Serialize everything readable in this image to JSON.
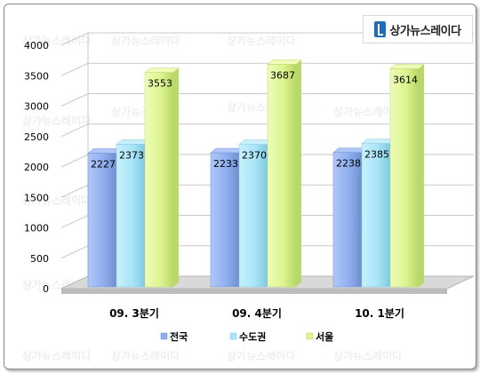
{
  "brand": {
    "logo_text": "상가뉴스레이다",
    "watermark_text": "상가뉴스레이다"
  },
  "colors": {
    "series": [
      "#8faef0",
      "#a8e6f8",
      "#ddf58f"
    ],
    "series_side": [
      "#6f8fd0",
      "#80c8e0",
      "#b8d86a"
    ],
    "series_top": [
      "#b0c8f8",
      "#c8f0fc",
      "#eefcb8"
    ],
    "grid": "#c9c9c9",
    "floor": "#d9d9d9"
  },
  "chart_data": {
    "type": "bar",
    "title": "",
    "xlabel": "",
    "ylabel": "",
    "categories": [
      "09. 3분기",
      "09. 4분기",
      "10. 1분기"
    ],
    "series": [
      {
        "name": "전국",
        "values": [
          2227,
          2233,
          2238
        ]
      },
      {
        "name": "수도권",
        "values": [
          2373,
          2370,
          2385
        ]
      },
      {
        "name": "서울",
        "values": [
          3553,
          3687,
          3614
        ]
      }
    ],
    "ylim": [
      0,
      4000
    ],
    "yticks": [
      0,
      500,
      1000,
      1500,
      2000,
      2500,
      3000,
      3500,
      4000
    ],
    "grid": true,
    "legend_position": "bottom",
    "three_d": true,
    "data_labels": true
  }
}
